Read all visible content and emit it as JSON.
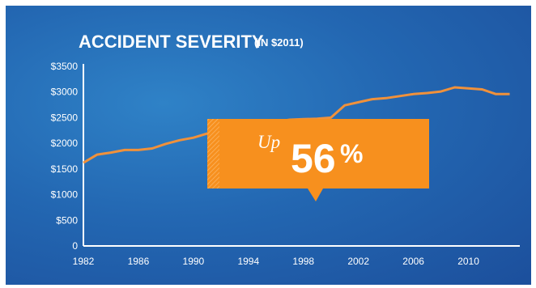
{
  "colors": {
    "background": "#2367b2",
    "line": "#f0913b",
    "callout": "#f7901e",
    "text": "#ffffff"
  },
  "chart_data": {
    "type": "line",
    "title": "ACCIDENT SEVERITY",
    "subtitle": "(IN $2011)",
    "xlabel": "",
    "ylabel": "",
    "xlim": [
      1982,
      2013.5
    ],
    "ylim": [
      0,
      3500
    ],
    "x_ticks": [
      "1982",
      "1986",
      "1990",
      "1994",
      "1998",
      "2002",
      "2006",
      "2010"
    ],
    "y_ticks": [
      "$3500",
      "$3000",
      "$2500",
      "$2000",
      "$1500",
      "$1000",
      "$500",
      "0"
    ],
    "x": [
      1982,
      1983,
      1984,
      1985,
      1986,
      1987,
      1988,
      1989,
      1990,
      1991,
      1992,
      1993,
      1994,
      1995,
      1996,
      1997,
      1998,
      1999,
      2000,
      2001,
      2002,
      2003,
      2004,
      2005,
      2006,
      2007,
      2008,
      2009,
      2010,
      2011,
      2012,
      2013
    ],
    "values": [
      1620,
      1780,
      1820,
      1870,
      1870,
      1900,
      1990,
      2060,
      2110,
      2190,
      2250,
      2290,
      2330,
      2370,
      2420,
      2460,
      2470,
      2480,
      2500,
      2740,
      2800,
      2860,
      2880,
      2920,
      2960,
      2980,
      3010,
      3090,
      3070,
      3050,
      2960,
      2960
    ],
    "grid": false,
    "annotation": {
      "prefix": "Up",
      "value": "56",
      "suffix": "%"
    }
  }
}
